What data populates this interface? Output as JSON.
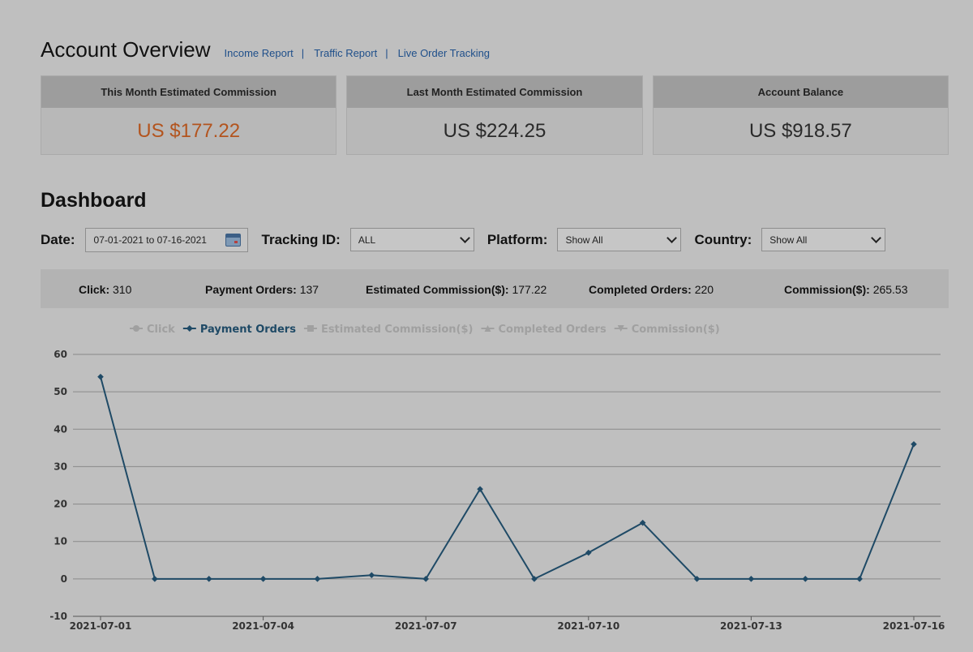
{
  "overview": {
    "title": "Account Overview",
    "links": [
      "Income Report",
      "Traffic Report",
      "Live Order Tracking"
    ],
    "separator": "|"
  },
  "cards": [
    {
      "label": "This Month Estimated Commission",
      "value": "US $177.22",
      "highlight": true
    },
    {
      "label": "Last Month Estimated Commission",
      "value": "US $224.25",
      "highlight": false
    },
    {
      "label": "Account Balance",
      "value": "US $918.57",
      "highlight": false
    }
  ],
  "dashboard": {
    "title": "Dashboard",
    "filters": {
      "date_label": "Date:",
      "date_value": "07-01-2021 to 07-16-2021",
      "tracking_label": "Tracking ID:",
      "tracking_value": "ALL",
      "platform_label": "Platform:",
      "platform_value": "Show All",
      "country_label": "Country:",
      "country_value": "Show All"
    },
    "stats": [
      {
        "label": "Click:",
        "value": "310"
      },
      {
        "label": "Payment Orders:",
        "value": "137"
      },
      {
        "label": "Estimated Commission($):",
        "value": "177.22"
      },
      {
        "label": "Completed Orders:",
        "value": "220"
      },
      {
        "label": "Commission($):",
        "value": "265.53"
      }
    ]
  },
  "colors": {
    "accent_value": "#b3541e",
    "link": "#1f4f8a",
    "series_active": "#1f4a66",
    "series_inactive": "#a0a0a0",
    "gridline": "#8a8a8a"
  },
  "chart_data": {
    "type": "line",
    "legend": [
      {
        "name": "Click",
        "active": false,
        "marker": "circle"
      },
      {
        "name": "Payment Orders",
        "active": true,
        "marker": "diamond"
      },
      {
        "name": "Estimated Commission($)",
        "active": false,
        "marker": "square"
      },
      {
        "name": "Completed Orders",
        "active": false,
        "marker": "triangle"
      },
      {
        "name": "Commission($)",
        "active": false,
        "marker": "triangle-down"
      }
    ],
    "legend_position": "top-left",
    "x": [
      "2021-07-01",
      "2021-07-02",
      "2021-07-03",
      "2021-07-04",
      "2021-07-05",
      "2021-07-06",
      "2021-07-07",
      "2021-07-08",
      "2021-07-09",
      "2021-07-10",
      "2021-07-11",
      "2021-07-12",
      "2021-07-13",
      "2021-07-14",
      "2021-07-15",
      "2021-07-16"
    ],
    "x_tick_labels": [
      "2021-07-01",
      "2021-07-04",
      "2021-07-07",
      "2021-07-10",
      "2021-07-13",
      "2021-07-16"
    ],
    "series": [
      {
        "name": "Payment Orders",
        "values": [
          54,
          0,
          0,
          0,
          0,
          1,
          0,
          24,
          0,
          7,
          15,
          0,
          0,
          0,
          0,
          36
        ]
      }
    ],
    "ylim": [
      -10,
      60
    ],
    "y_ticks": [
      -10,
      0,
      10,
      20,
      30,
      40,
      50,
      60
    ],
    "grid": true
  }
}
